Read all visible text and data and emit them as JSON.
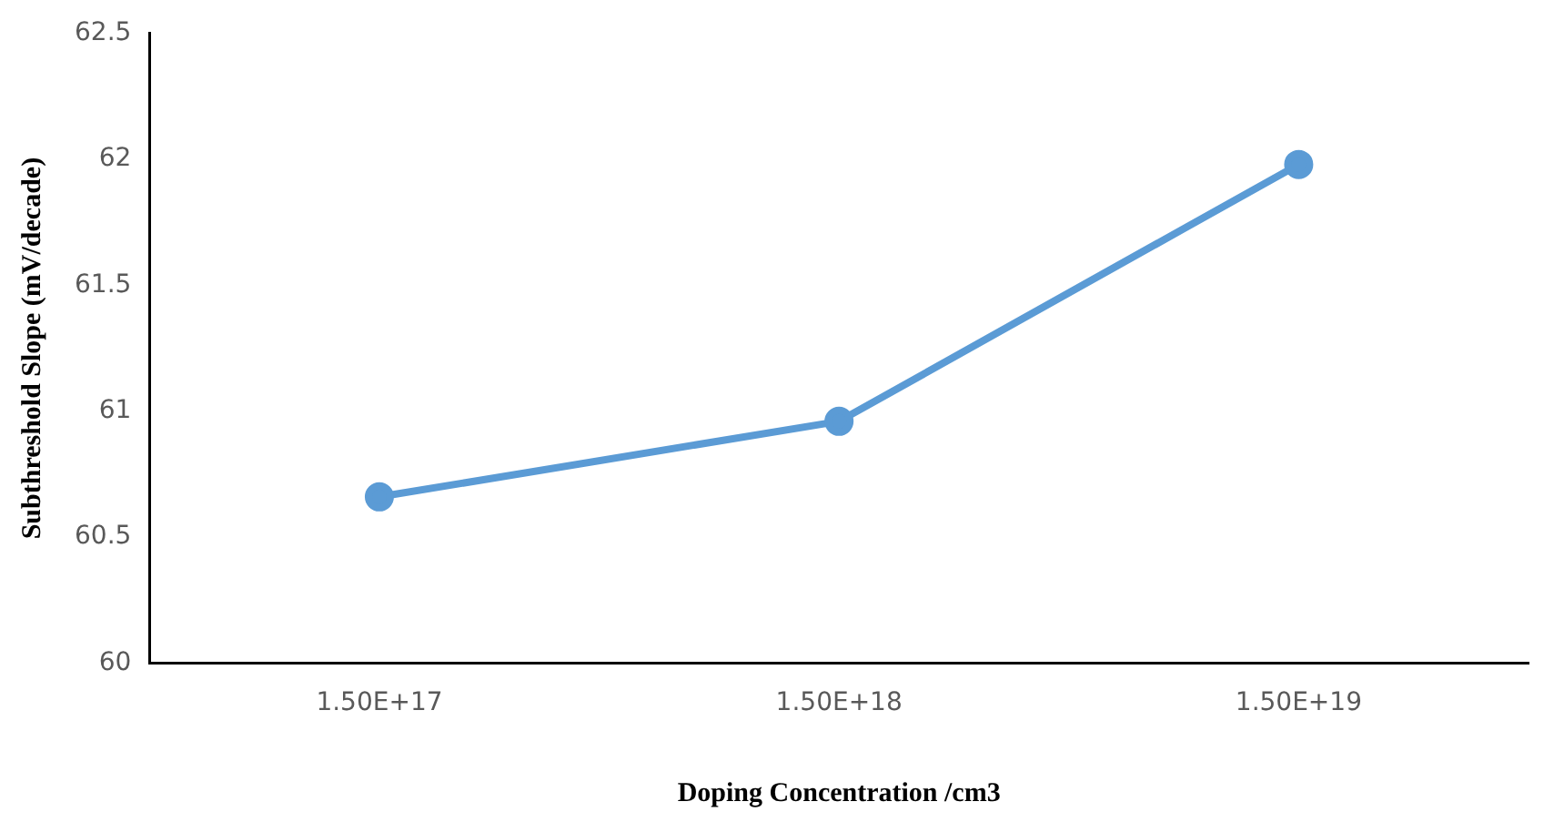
{
  "chart_data": {
    "type": "line",
    "xlabel": "Doping Concentration /cm3",
    "ylabel": "Subthreshold Slope (mV/decade)",
    "categories": [
      "1.50E+17",
      "1.50E+18",
      "1.50E+19"
    ],
    "series": [
      {
        "color": "#5b9bd5",
        "values": [
          60.66,
          60.96,
          61.98
        ]
      }
    ],
    "ylim": [
      60,
      62.5
    ],
    "yticks": [
      60,
      60.5,
      61,
      61.5,
      62,
      62.5
    ],
    "grid": false,
    "legend": false,
    "marker": "circle",
    "line_style": "solid"
  }
}
